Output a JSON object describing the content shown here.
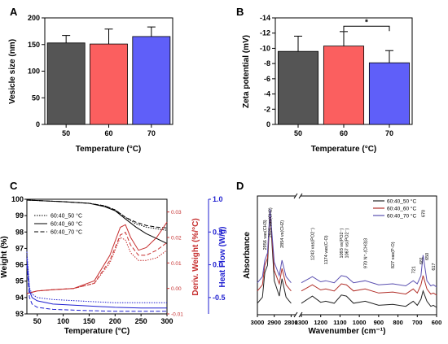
{
  "panels": [
    "A",
    "B",
    "C",
    "D"
  ],
  "chart_data": [
    {
      "panel": "A",
      "type": "bar",
      "categories": [
        "50",
        "60",
        "70"
      ],
      "values": [
        153,
        151,
        165
      ],
      "errors": [
        14,
        28,
        18
      ],
      "colors": [
        "#555555",
        "#fb5f5f",
        "#5f5ff9"
      ],
      "xlabel": "Temperature (°C)",
      "ylabel": "Vesicle size (nm)",
      "ylim": [
        0,
        200
      ],
      "yticks": [
        "0",
        "50",
        "100",
        "150",
        "200"
      ]
    },
    {
      "panel": "B",
      "type": "bar",
      "categories": [
        "50",
        "60",
        "70"
      ],
      "values": [
        -9.6,
        -10.3,
        -8.1
      ],
      "errors": [
        2.0,
        1.9,
        1.6
      ],
      "colors": [
        "#555555",
        "#fb5f5f",
        "#5f5ff9"
      ],
      "xlabel": "Temperature (°C)",
      "ylabel": "Zeta potential (mV)",
      "ylim": [
        0,
        -14
      ],
      "yticks": [
        "0",
        "-2",
        "-4",
        "-6",
        "-8",
        "-10",
        "-12",
        "-14"
      ],
      "significance": {
        "between": [
          "60",
          "70"
        ],
        "label": "*"
      }
    },
    {
      "panel": "C",
      "type": "line",
      "xlabel": "Temperature (°C)",
      "ylabel": "Weight (%)",
      "ylabel_right1": "Deriv. Weight (%/°C)",
      "ylabel_right2": "Heat Flow (W/g)",
      "xlim": [
        30,
        300
      ],
      "ylim": [
        93,
        100
      ],
      "ylim_right1": [
        -0.01,
        0.035
      ],
      "ylim_right2": [
        -0.75,
        1.0
      ],
      "xticks": [
        "50",
        "100",
        "150",
        "200",
        "250",
        "300"
      ],
      "yticks": [
        "93",
        "94",
        "95",
        "96",
        "97",
        "98",
        "99",
        "100"
      ],
      "yticks_right1": [
        "-0.01",
        "0.00",
        "0.01",
        "0.02",
        "0.03"
      ],
      "yticks_right2": [
        "-0.5",
        "0.0",
        "0.5",
        "1.0"
      ],
      "legend": [
        "60:40_50 °C",
        "60:40_60 °C",
        "60:40_70 °C"
      ],
      "series": [
        {
          "name": "60:40_50 °C",
          "quantity": "weight",
          "x": [
            30,
            100,
            150,
            180,
            200,
            220,
            240,
            260,
            280,
            300
          ],
          "y": [
            99.95,
            99.85,
            99.75,
            99.6,
            99.35,
            98.9,
            98.5,
            98.3,
            98.2,
            98.1
          ]
        },
        {
          "name": "60:40_60 °C",
          "quantity": "weight",
          "x": [
            30,
            100,
            150,
            180,
            200,
            220,
            240,
            260,
            280,
            300
          ],
          "y": [
            99.95,
            99.85,
            99.75,
            99.55,
            99.3,
            98.8,
            98.3,
            97.9,
            97.6,
            97.3
          ]
        },
        {
          "name": "60:40_70 °C",
          "quantity": "weight",
          "x": [
            30,
            100,
            150,
            180,
            200,
            220,
            240,
            260,
            280,
            300
          ],
          "y": [
            99.95,
            99.85,
            99.75,
            99.6,
            99.35,
            98.9,
            98.6,
            98.4,
            98.3,
            98.25
          ]
        },
        {
          "name": "60:40_50 °C",
          "quantity": "deriv",
          "x": [
            30,
            50,
            80,
            120,
            160,
            190,
            210,
            220,
            230,
            245,
            260,
            280,
            300
          ],
          "y": [
            -0.002,
            -0.001,
            -0.0005,
            0.0,
            0.002,
            0.01,
            0.02,
            0.019,
            0.014,
            0.011,
            0.011,
            0.012,
            0.015
          ]
        },
        {
          "name": "60:40_60 °C",
          "quantity": "deriv",
          "x": [
            30,
            50,
            80,
            120,
            160,
            190,
            210,
            220,
            230,
            245,
            260,
            280,
            300
          ],
          "y": [
            -0.002,
            -0.001,
            -0.0005,
            0.0,
            0.003,
            0.013,
            0.024,
            0.025,
            0.02,
            0.015,
            0.016,
            0.02,
            0.026
          ]
        },
        {
          "name": "60:40_70 °C",
          "quantity": "deriv",
          "x": [
            30,
            50,
            80,
            120,
            160,
            190,
            210,
            220,
            230,
            245,
            260,
            280,
            300
          ],
          "y": [
            -0.002,
            -0.001,
            -0.0005,
            0.0,
            0.002,
            0.011,
            0.021,
            0.022,
            0.017,
            0.013,
            0.013,
            0.015,
            0.018
          ]
        },
        {
          "name": "60:40_50 °C",
          "quantity": "heatflow",
          "x": [
            30,
            35,
            40,
            50,
            80,
            150,
            200,
            250,
            300
          ],
          "y": [
            0.2,
            -0.35,
            -0.45,
            -0.5,
            -0.53,
            -0.56,
            -0.58,
            -0.58,
            -0.58
          ]
        },
        {
          "name": "60:40_60 °C",
          "quantity": "heatflow",
          "x": [
            30,
            35,
            40,
            50,
            80,
            150,
            200,
            250,
            300
          ],
          "y": [
            0.1,
            -0.4,
            -0.5,
            -0.55,
            -0.6,
            -0.63,
            -0.65,
            -0.66,
            -0.66
          ]
        },
        {
          "name": "60:40_70 °C",
          "quantity": "heatflow",
          "x": [
            30,
            35,
            40,
            50,
            80,
            150,
            200,
            250,
            300
          ],
          "y": [
            0.0,
            -0.5,
            -0.6,
            -0.65,
            -0.68,
            -0.7,
            -0.71,
            -0.71,
            -0.71
          ]
        }
      ]
    },
    {
      "panel": "D",
      "type": "line",
      "xlabel": "Wavenumber (cm⁻¹)",
      "ylabel": "Absorbance",
      "axis_break": [
        2700,
        1300
      ],
      "xticks": [
        "3000",
        "2900",
        "2800",
        "1300",
        "1200",
        "1100",
        "1000",
        "900",
        "800",
        "700",
        "600"
      ],
      "legend": [
        "60:40_50 °C",
        "60:40_60 °C",
        "60:40_70 °C"
      ],
      "peak_labels": [
        "2956 νas(CH3)",
        "2925 νas(CH2)",
        "2854 νs(CH2)",
        "1243 νas(PO2⁻)",
        "1174 νas(C-O)",
        "1093 νs(PO2⁻)",
        "1067 νs(PO2⁻)",
        "970 N⁺-(CH3)3",
        "827 νas(P-O)",
        "721",
        "681",
        "670",
        "650",
        "617"
      ],
      "series": [
        {
          "name": "60:40_50 °C",
          "x": [
            3000,
            2970,
            2956,
            2940,
            2925,
            2900,
            2870,
            2854,
            2830,
            2800,
            1300,
            1243,
            1200,
            1174,
            1130,
            1093,
            1067,
            1030,
            970,
            900,
            827,
            760,
            721,
            700,
            681,
            670,
            650,
            630,
            617,
            600
          ],
          "y": [
            0.08,
            0.14,
            0.38,
            0.45,
            0.98,
            0.3,
            0.15,
            0.32,
            0.14,
            0.08,
            0.08,
            0.15,
            0.09,
            0.1,
            0.08,
            0.16,
            0.15,
            0.08,
            0.1,
            0.06,
            0.07,
            0.05,
            0.1,
            0.06,
            0.12,
            0.2,
            0.1,
            0.05,
            0.06,
            0.04
          ]
        },
        {
          "name": "60:40_60 °C",
          "x": [
            3000,
            2970,
            2956,
            2940,
            2925,
            2900,
            2870,
            2854,
            2830,
            2800,
            1300,
            1243,
            1200,
            1174,
            1130,
            1093,
            1067,
            1030,
            970,
            900,
            827,
            760,
            721,
            700,
            681,
            670,
            650,
            630,
            617,
            600
          ],
          "y": [
            0.2,
            0.26,
            0.45,
            0.52,
            0.99,
            0.4,
            0.27,
            0.42,
            0.26,
            0.2,
            0.2,
            0.26,
            0.21,
            0.22,
            0.2,
            0.27,
            0.26,
            0.2,
            0.22,
            0.18,
            0.19,
            0.17,
            0.22,
            0.18,
            0.26,
            0.35,
            0.22,
            0.17,
            0.18,
            0.16
          ]
        },
        {
          "name": "60:40_70 °C",
          "x": [
            3000,
            2970,
            2956,
            2940,
            2925,
            2900,
            2870,
            2854,
            2830,
            2800,
            1300,
            1243,
            1200,
            1174,
            1130,
            1093,
            1067,
            1030,
            970,
            900,
            827,
            760,
            721,
            700,
            681,
            670,
            650,
            630,
            617,
            600
          ],
          "y": [
            0.28,
            0.34,
            0.5,
            0.57,
            1.0,
            0.48,
            0.35,
            0.5,
            0.34,
            0.28,
            0.28,
            0.34,
            0.29,
            0.3,
            0.28,
            0.35,
            0.34,
            0.28,
            0.3,
            0.26,
            0.27,
            0.25,
            0.3,
            0.27,
            0.35,
            0.55,
            0.3,
            0.25,
            0.26,
            0.24
          ]
        }
      ],
      "colors": [
        "#222222",
        "#b2302a",
        "#5a4fb0"
      ]
    }
  ]
}
